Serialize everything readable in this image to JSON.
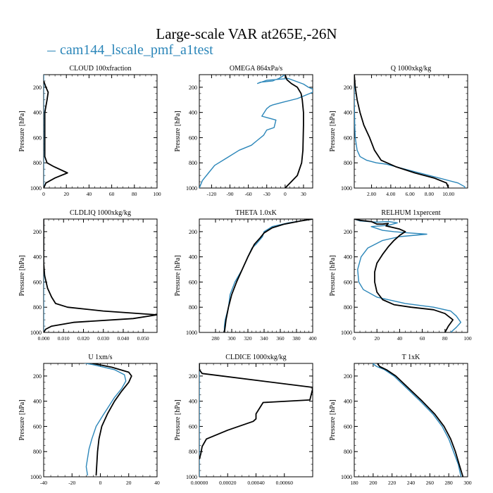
{
  "title": "Large-scale VAR at265E,-26N",
  "legend": {
    "label": "cam144_lscale_pmf_a1test",
    "color": "#2b86b9"
  },
  "colors": {
    "series_a": "#2b86b9",
    "series_b": "#000000"
  },
  "ylabel": "Pressure [hPa]",
  "yticks": [
    200,
    400,
    600,
    800,
    1000
  ],
  "ylim": [
    1000,
    100
  ],
  "chart_data": [
    {
      "type": "line",
      "title": "CLOUD  100xfraction",
      "xlim": [
        0,
        100
      ],
      "xticks": [
        0,
        20,
        40,
        60,
        80,
        100
      ],
      "xtick_labels": [
        "0",
        "20",
        "40",
        "60",
        "80",
        "100"
      ],
      "series": [
        {
          "name": "cam144_lscale_pmf_a1test",
          "color": "#2b86b9",
          "x": [
            0,
            0,
            0,
            0,
            0,
            0,
            0,
            0,
            0,
            0,
            0
          ],
          "p": [
            100,
            200,
            300,
            400,
            500,
            600,
            700,
            800,
            900,
            950,
            1000
          ]
        },
        {
          "color": "#000000",
          "x": [
            0,
            2,
            4,
            3,
            1,
            1,
            1,
            3,
            9,
            21,
            10,
            2,
            0
          ],
          "p": [
            150,
            200,
            240,
            300,
            400,
            600,
            750,
            800,
            830,
            880,
            920,
            960,
            1000
          ]
        }
      ]
    },
    {
      "type": "line",
      "title": "OMEGA  864xPa/s",
      "xlim": [
        -140,
        45
      ],
      "xticks": [
        -120,
        -90,
        -60,
        -30,
        0,
        30
      ],
      "xtick_labels": [
        "-120",
        "-90",
        "-60",
        "-30",
        "0",
        "30"
      ],
      "series": [
        {
          "name": "cam144_lscale_pmf_a1test",
          "color": "#2b86b9",
          "x": [
            0,
            -10,
            -20,
            -40,
            -45,
            -30,
            5,
            30,
            38,
            45,
            45,
            20,
            -5,
            -20,
            -25,
            -30,
            -38,
            -15,
            -18,
            -30,
            -35,
            -45,
            -55,
            -75,
            -95,
            -115,
            -125,
            -135,
            -140
          ],
          "p": [
            100,
            130,
            150,
            160,
            170,
            145,
            130,
            175,
            200,
            215,
            240,
            290,
            320,
            340,
            350,
            370,
            430,
            460,
            520,
            540,
            580,
            620,
            660,
            700,
            760,
            820,
            880,
            940,
            1000
          ]
        },
        {
          "color": "#000000",
          "x": [
            0,
            3,
            10,
            20,
            26,
            28,
            30,
            30,
            29,
            27,
            20,
            10,
            0
          ],
          "p": [
            100,
            140,
            170,
            200,
            250,
            300,
            400,
            500,
            700,
            800,
            900,
            950,
            1000
          ]
        }
      ]
    },
    {
      "type": "line",
      "title": "Q  1000xkg/kg",
      "xlim": [
        0.2,
        12
      ],
      "xticks": [
        2,
        4,
        6,
        8,
        10
      ],
      "xtick_labels": [
        "2.00",
        "4.00",
        "6.00",
        "8.00",
        "10.00"
      ],
      "series": [
        {
          "name": "cam144_lscale_pmf_a1test",
          "color": "#2b86b9",
          "x": [
            0.2,
            0.2,
            0.25,
            0.3,
            0.5,
            0.8,
            1.5,
            2.5,
            3.5,
            6,
            9,
            11,
            11.7,
            11.7
          ],
          "p": [
            100,
            300,
            500,
            600,
            700,
            750,
            780,
            800,
            810,
            860,
            920,
            960,
            990,
            1000
          ]
        },
        {
          "color": "#000000",
          "x": [
            0.2,
            0.3,
            0.5,
            0.8,
            1.2,
            1.8,
            2.3,
            3,
            4.5,
            6.5,
            8.5,
            9.8,
            10
          ],
          "p": [
            100,
            200,
            300,
            400,
            500,
            600,
            700,
            780,
            830,
            880,
            920,
            960,
            1000
          ]
        }
      ]
    },
    {
      "type": "line",
      "title": "CLDLIQ  1000xkg/kg",
      "xlim": [
        0,
        0.057
      ],
      "xticks": [
        0,
        0.01,
        0.02,
        0.03,
        0.04,
        0.05
      ],
      "xtick_labels": [
        "0.000",
        "0.010",
        "0.020",
        "0.030",
        "0.040",
        "0.050"
      ],
      "series": [
        {
          "name": "cam144_lscale_pmf_a1test",
          "color": "#2b86b9",
          "x": [
            0,
            0,
            0,
            0,
            0
          ],
          "p": [
            100,
            400,
            700,
            900,
            1000
          ]
        },
        {
          "color": "#000000",
          "x": [
            0,
            0,
            0.0005,
            0.002,
            0.004,
            0.006,
            0.012,
            0.03,
            0.057,
            0.045,
            0.015,
            0.004,
            0.001,
            0
          ],
          "p": [
            100,
            450,
            550,
            650,
            720,
            770,
            800,
            830,
            860,
            890,
            920,
            950,
            975,
            1000
          ]
        }
      ]
    },
    {
      "type": "line",
      "title": "THETA  1.0xK",
      "xlim": [
        260,
        400
      ],
      "xticks": [
        280,
        300,
        320,
        340,
        360,
        380,
        400
      ],
      "xtick_labels": [
        "280",
        "300",
        "320",
        "340",
        "360",
        "380",
        "400"
      ],
      "series": [
        {
          "name": "cam144_lscale_pmf_a1test",
          "color": "#2b86b9",
          "x": [
            400,
            390,
            370,
            350,
            340,
            338,
            330,
            325,
            320,
            313,
            304,
            298,
            296,
            294,
            292,
            291,
            291
          ],
          "p": [
            100,
            110,
            130,
            160,
            200,
            240,
            300,
            330,
            400,
            500,
            600,
            700,
            800,
            850,
            900,
            950,
            1000
          ]
        },
        {
          "color": "#000000",
          "x": [
            400,
            385,
            365,
            350,
            340,
            335,
            328,
            320,
            313,
            306,
            300,
            296,
            293,
            292,
            291
          ],
          "p": [
            100,
            115,
            140,
            170,
            210,
            250,
            300,
            400,
            500,
            600,
            700,
            800,
            900,
            950,
            1000
          ]
        }
      ]
    },
    {
      "type": "line",
      "title": "RELHUM  1xpercent",
      "xlim": [
        0,
        100
      ],
      "xticks": [
        0,
        20,
        40,
        60,
        80,
        100
      ],
      "xtick_labels": [
        "0",
        "20",
        "40",
        "60",
        "80",
        "100"
      ],
      "series": [
        {
          "name": "cam144_lscale_pmf_a1test",
          "color": "#2b86b9",
          "x": [
            0,
            5,
            20,
            30,
            38,
            30,
            15,
            25,
            35,
            48,
            64,
            40,
            25,
            12,
            6,
            3,
            4,
            8,
            20,
            45,
            70,
            85,
            90,
            94,
            90,
            85
          ],
          "p": [
            100,
            115,
            125,
            120,
            130,
            150,
            160,
            190,
            200,
            210,
            220,
            240,
            270,
            330,
            400,
            500,
            600,
            660,
            720,
            770,
            800,
            830,
            870,
            920,
            960,
            1000
          ]
        },
        {
          "color": "#000000",
          "x": [
            0,
            5,
            15,
            20,
            25,
            30,
            28,
            40,
            45,
            40,
            35,
            30,
            25,
            20,
            18,
            18,
            20,
            25,
            35,
            50,
            70,
            80,
            87,
            83,
            80
          ],
          "p": [
            100,
            110,
            120,
            140,
            140,
            135,
            155,
            180,
            200,
            230,
            270,
            320,
            380,
            450,
            520,
            600,
            680,
            740,
            780,
            800,
            820,
            850,
            900,
            950,
            1000
          ]
        }
      ]
    },
    {
      "type": "line",
      "title": "U  1xm/s",
      "xlim": [
        -40,
        40
      ],
      "xticks": [
        -40,
        -20,
        0,
        20,
        40
      ],
      "xtick_labels": [
        "-40",
        "-20",
        "0",
        "20",
        "40"
      ],
      "series": [
        {
          "name": "cam144_lscale_pmf_a1test",
          "color": "#2b86b9",
          "x": [
            -35,
            -20,
            -5,
            10,
            17,
            18,
            15,
            10,
            6,
            2,
            -3,
            -6,
            -8,
            -9,
            -10,
            -9
          ],
          "p": [
            60,
            80,
            110,
            150,
            190,
            240,
            300,
            370,
            440,
            510,
            600,
            700,
            780,
            850,
            920,
            990
          ]
        },
        {
          "color": "#000000",
          "x": [
            -30,
            -10,
            8,
            20,
            22,
            20,
            15,
            10,
            5,
            1,
            -1,
            -2,
            -3
          ],
          "p": [
            60,
            90,
            130,
            170,
            200,
            250,
            320,
            400,
            500,
            600,
            700,
            800,
            990
          ]
        }
      ]
    },
    {
      "type": "line",
      "title": "CLDICE  1000xkg/kg",
      "xlim": [
        0,
        0.0008
      ],
      "xticks": [
        0,
        0.0002,
        0.0004,
        0.0006
      ],
      "xtick_labels": [
        "0.00000",
        "0.00020",
        "0.00040",
        "0.00060"
      ],
      "series": [
        {
          "name": "cam144_lscale_pmf_a1test",
          "color": "#2b86b9",
          "x": [
            0,
            0,
            0,
            0
          ],
          "p": [
            100,
            500,
            900,
            1000
          ]
        },
        {
          "color": "#000000",
          "x": [
            0,
            0,
            2e-05,
            0.0008,
            0.0008,
            0.00078,
            0.00045,
            0.0004,
            0.0004,
            0.00038,
            0.0002,
            5e-05,
            3e-05,
            2e-05,
            1e-05,
            0
          ],
          "p": [
            100,
            150,
            180,
            290,
            300,
            390,
            410,
            500,
            540,
            560,
            630,
            700,
            740,
            760,
            820,
            860
          ]
        }
      ]
    },
    {
      "type": "line",
      "title": "T  1xK",
      "xlim": [
        180,
        300
      ],
      "xticks": [
        180,
        200,
        220,
        240,
        260,
        280,
        300
      ],
      "xtick_labels": [
        "180",
        "200",
        "220",
        "240",
        "260",
        "280",
        "300"
      ],
      "series": [
        {
          "name": "cam144_lscale_pmf_a1test",
          "color": "#2b86b9",
          "x": [
            220,
            210,
            205,
            200,
            204,
            212,
            222,
            236,
            250,
            263,
            273,
            280,
            285,
            290,
            293
          ],
          "p": [
            50,
            70,
            85,
            105,
            125,
            150,
            200,
            300,
            400,
            500,
            600,
            700,
            800,
            900,
            1000
          ]
        },
        {
          "color": "#000000",
          "x": [
            222,
            212,
            208,
            205,
            207,
            214,
            224,
            238,
            252,
            265,
            275,
            282,
            287,
            291,
            295
          ],
          "p": [
            50,
            70,
            85,
            105,
            125,
            150,
            200,
            300,
            400,
            500,
            600,
            700,
            800,
            900,
            1000
          ]
        }
      ]
    }
  ]
}
